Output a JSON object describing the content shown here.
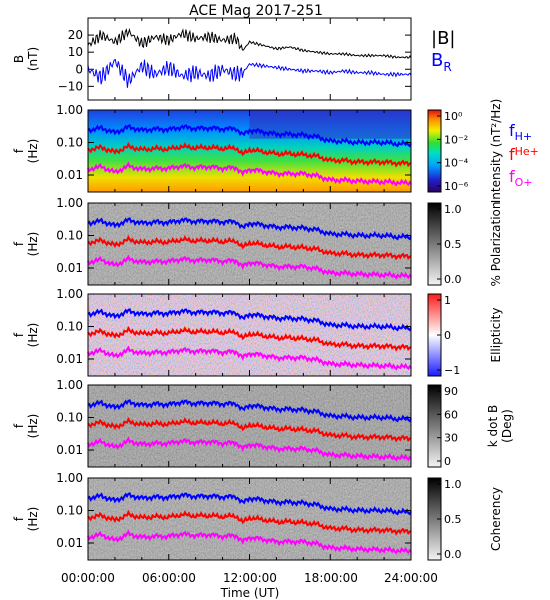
{
  "title": "ACE Mag 2017-251",
  "x_axis": {
    "ticks": [
      "00:00:00",
      "06:00:00",
      "12:00:00",
      "18:00:00",
      "24:00:00"
    ],
    "label": "Time (UT)"
  },
  "colors": {
    "B_total": "#000000",
    "B_R": "#0000ff",
    "f_H": "#0000ff",
    "f_He": "#ff0000",
    "f_O": "#ff00ff"
  },
  "chart_data": [
    {
      "type": "line",
      "panel": "magnetic-field",
      "ylabel": [
        "B",
        "(nT)"
      ],
      "ylim": [
        -18,
        30
      ],
      "yticks": [
        "20",
        "10",
        "0",
        "−10"
      ],
      "x": [
        0,
        1,
        2,
        3,
        4,
        5,
        6,
        7,
        8,
        9,
        10,
        11,
        11.5,
        12,
        13,
        14,
        15,
        16,
        17,
        18,
        19,
        20,
        21,
        22,
        23,
        24
      ],
      "series": [
        {
          "name": "|B|",
          "values": [
            14,
            20,
            16,
            22,
            15,
            19,
            17,
            21,
            18,
            19,
            17,
            18,
            11,
            16,
            14,
            12,
            13,
            11,
            10,
            9,
            9,
            8,
            8,
            8,
            7,
            7
          ]
        },
        {
          "name": "B",
          "subscript": "R",
          "values": [
            0,
            -5,
            5,
            -7,
            2,
            -3,
            1,
            -4,
            -2,
            -4,
            0,
            -3,
            -2,
            3,
            2,
            1,
            0,
            -1,
            -1,
            -2,
            -1,
            -2,
            -2,
            -3,
            -3,
            -3
          ]
        }
      ]
    },
    {
      "type": "heatmap",
      "panel": "intensity",
      "ylabel": [
        "f",
        "(Hz)"
      ],
      "yscale": "log",
      "ylim": [
        0.003,
        1.0
      ],
      "yticks": [
        "1.00",
        "0.10",
        "0.01"
      ],
      "colorbar": {
        "label": "Intensity (nT²/Hz)",
        "ticks": [
          "10⁰",
          "10⁻²",
          "10⁻⁴",
          "10⁻⁶"
        ],
        "colormap": "rainbow"
      }
    },
    {
      "type": "heatmap",
      "panel": "polarization",
      "ylabel": [
        "f",
        "(Hz)"
      ],
      "yscale": "log",
      "ylim": [
        0.003,
        1.0
      ],
      "yticks": [
        "1.00",
        "0.10",
        "0.01"
      ],
      "colorbar": {
        "label": "% Polarization",
        "ticks": [
          "1.0",
          "0.5",
          "0.0"
        ],
        "colormap": "grayscale"
      }
    },
    {
      "type": "heatmap",
      "panel": "ellipticity",
      "ylabel": [
        "f",
        "(Hz)"
      ],
      "yscale": "log",
      "ylim": [
        0.003,
        1.0
      ],
      "yticks": [
        "1.00",
        "0.10",
        "0.01"
      ],
      "colorbar": {
        "label": "Ellipticity",
        "ticks": [
          "1",
          "0",
          "−1"
        ],
        "colormap": "blue-white-red"
      }
    },
    {
      "type": "heatmap",
      "panel": "wave-normal-angle",
      "ylabel": [
        "f",
        "(Hz)"
      ],
      "yscale": "log",
      "ylim": [
        0.003,
        1.0
      ],
      "yticks": [
        "1.00",
        "0.10",
        "0.01"
      ],
      "colorbar": {
        "label": [
          "k dot B",
          "(Deg)"
        ],
        "ticks": [
          "90",
          "60",
          "30",
          "0"
        ],
        "colormap": "grayscale"
      }
    },
    {
      "type": "heatmap",
      "panel": "coherency",
      "ylabel": [
        "f",
        "(Hz)"
      ],
      "yscale": "log",
      "ylim": [
        0.003,
        1.0
      ],
      "yticks": [
        "1.00",
        "0.10",
        "0.01"
      ],
      "colorbar": {
        "label": "Coherency",
        "ticks": [
          "1.0",
          "0.5",
          "0.0"
        ],
        "colormap": "grayscale"
      }
    }
  ],
  "gyrofrequency_lines": {
    "x": [
      0,
      1,
      2,
      3,
      4,
      5,
      6,
      7,
      8,
      9,
      10,
      11,
      11.5,
      12,
      13,
      14,
      15,
      16,
      17,
      18,
      19,
      20,
      21,
      22,
      23,
      24
    ],
    "series": [
      {
        "name": "f",
        "subscript": "H+",
        "values": [
          0.24,
          0.28,
          0.2,
          0.3,
          0.24,
          0.26,
          0.25,
          0.3,
          0.27,
          0.28,
          0.26,
          0.27,
          0.17,
          0.24,
          0.21,
          0.18,
          0.18,
          0.17,
          0.15,
          0.11,
          0.11,
          0.1,
          0.1,
          0.1,
          0.09,
          0.09
        ]
      },
      {
        "name": "f",
        "subscript": "He+",
        "values": [
          0.06,
          0.07,
          0.05,
          0.075,
          0.06,
          0.065,
          0.062,
          0.075,
          0.068,
          0.07,
          0.065,
          0.068,
          0.043,
          0.06,
          0.052,
          0.045,
          0.045,
          0.042,
          0.038,
          0.028,
          0.028,
          0.025,
          0.025,
          0.025,
          0.023,
          0.023
        ]
      },
      {
        "name": "f",
        "subscript": "O+",
        "values": [
          0.015,
          0.018,
          0.012,
          0.019,
          0.015,
          0.016,
          0.016,
          0.019,
          0.017,
          0.018,
          0.016,
          0.017,
          0.011,
          0.015,
          0.013,
          0.011,
          0.011,
          0.011,
          0.0095,
          0.007,
          0.007,
          0.0065,
          0.0063,
          0.0062,
          0.0058,
          0.0057
        ]
      }
    ]
  }
}
